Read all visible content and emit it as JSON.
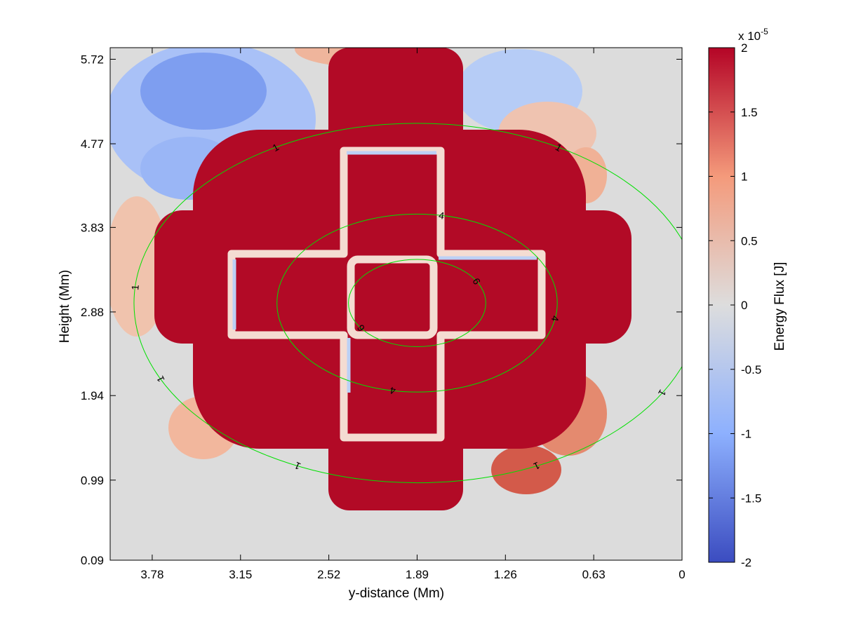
{
  "chart_data": {
    "type": "heatmap",
    "title": "",
    "xlabel": "y-distance (Mm)",
    "ylabel": "Height (Mm)",
    "x_ticks": [
      "3.78",
      "3.15",
      "2.52",
      "1.89",
      "1.26",
      "0.63",
      "0"
    ],
    "y_ticks": [
      "5.72",
      "4.77",
      "3.83",
      "2.88",
      "1.94",
      "0.99",
      "0.09"
    ],
    "x_tick_values": [
      3.78,
      3.15,
      2.52,
      1.89,
      1.26,
      0.63,
      0
    ],
    "y_tick_values": [
      5.72,
      4.77,
      3.83,
      2.88,
      1.94,
      0.99,
      0.09
    ],
    "xlim": [
      4.08,
      0
    ],
    "ylim": [
      0.09,
      5.85
    ],
    "x_reversed": true,
    "colorbar": {
      "label": "Energy Flux [J]",
      "multiplier": "x 10",
      "exponent": "-5",
      "ticks": [
        "2",
        "1.5",
        "1",
        "0.5",
        "0",
        "-0.5",
        "-1",
        "-1.5",
        "-2"
      ],
      "range": [
        -2,
        2
      ],
      "colormap": "coolwarm",
      "low_color": "#3b4cc0",
      "mid_color": "#dddddd",
      "high_color": "#b40426"
    },
    "contours": {
      "color": "#00e000",
      "center": {
        "x": 1.89,
        "y": 2.98
      },
      "levels": [
        {
          "label": "6",
          "radius": 0.49
        },
        {
          "label": "4",
          "radius": 1.0
        },
        {
          "label": "1",
          "radius": 2.02
        }
      ]
    },
    "grid": false
  }
}
